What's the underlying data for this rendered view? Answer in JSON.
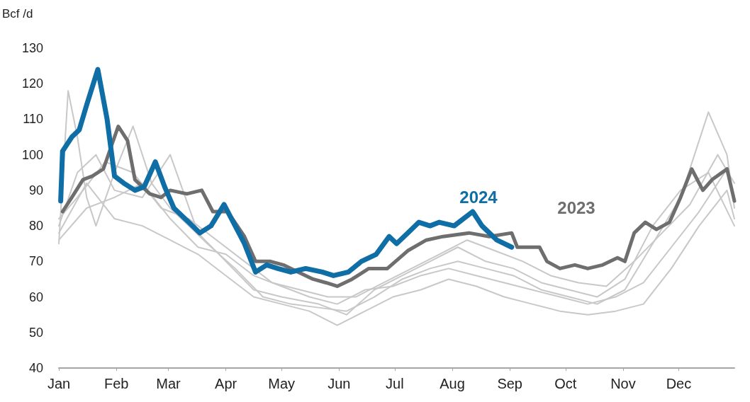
{
  "chart_data": {
    "type": "line",
    "ylabel": "Bcf /d",
    "xlim": [
      "--01-01",
      "--12-31"
    ],
    "xticks": [
      {
        "value": "--01-01",
        "label": "Jan"
      },
      {
        "value": "--02-01",
        "label": "Feb"
      },
      {
        "value": "--03-01",
        "label": "Mar"
      },
      {
        "value": "--04-01",
        "label": "Apr"
      },
      {
        "value": "--05-01",
        "label": "May"
      },
      {
        "value": "--06-01",
        "label": "Jun"
      },
      {
        "value": "--07-01",
        "label": "Jul"
      },
      {
        "value": "--08-01",
        "label": "Aug"
      },
      {
        "value": "--09-01",
        "label": "Sep"
      },
      {
        "value": "--10-01",
        "label": "Oct"
      },
      {
        "value": "--11-01",
        "label": "Nov"
      },
      {
        "value": "--12-01",
        "label": "Dec"
      }
    ],
    "ylim": [
      40,
      130
    ],
    "yticks": [
      40,
      50,
      60,
      70,
      80,
      90,
      100,
      110,
      120,
      130
    ],
    "grid": false,
    "marker": "none",
    "line_style": "solid",
    "annotations": [
      "2024",
      "2023"
    ],
    "series": [
      {
        "color": "#0f6ea6",
        "x": [
          "--01-02",
          "--01-03",
          "--01-08",
          "--01-12",
          "--01-16",
          "--01-22",
          "--01-27",
          "--01-31",
          "--02-05",
          "--02-11",
          "--02-16",
          "--02-22",
          "--02-27",
          "--03-04",
          "--03-12",
          "--03-18",
          "--03-24",
          "--03-31",
          "--04-06",
          "--04-11",
          "--04-17",
          "--04-23",
          "--04-29",
          "--05-06",
          "--05-14",
          "--05-23",
          "--05-29",
          "--06-06",
          "--06-13",
          "--06-21",
          "--06-28",
          "--07-02",
          "--07-08",
          "--07-14",
          "--07-20",
          "--07-25",
          "--08-02",
          "--08-12",
          "--08-17",
          "--08-25",
          "--09-02"
        ],
        "values": [
          87,
          101,
          105,
          107,
          114,
          124,
          110,
          94,
          92,
          90,
          91,
          98,
          91,
          85,
          81,
          78,
          80,
          86,
          80,
          75,
          67,
          69,
          68,
          67,
          68,
          67,
          66,
          67,
          70,
          72,
          77,
          75,
          78,
          81,
          80,
          81,
          80,
          84,
          80,
          76,
          74
        ]
      },
      {
        "color": "#6e6e6e",
        "x": [
          "--01-03",
          "--01-08",
          "--01-14",
          "--01-19",
          "--01-25",
          "--02-02",
          "--02-07",
          "--02-11",
          "--02-19",
          "--02-25",
          "--03-02",
          "--03-11",
          "--03-19",
          "--03-25",
          "--04-02",
          "--04-11",
          "--04-17",
          "--04-25",
          "--05-02",
          "--05-10",
          "--05-18",
          "--05-25",
          "--05-31",
          "--06-08",
          "--06-17",
          "--06-27",
          "--07-08",
          "--07-18",
          "--07-27",
          "--08-10",
          "--08-21",
          "--09-02",
          "--09-05",
          "--09-11",
          "--09-17",
          "--09-21",
          "--09-28",
          "--10-06",
          "--10-13",
          "--10-21",
          "--10-29",
          "--11-02",
          "--11-07",
          "--11-13",
          "--11-19",
          "--11-26",
          "--12-02",
          "--12-08",
          "--12-14",
          "--12-19",
          "--12-27",
          "--12-31"
        ],
        "values": [
          84,
          88,
          93,
          94,
          96,
          108,
          104,
          93,
          89,
          88,
          90,
          89,
          90,
          84,
          84,
          77,
          70,
          70,
          69,
          67,
          65,
          64,
          63,
          65,
          68,
          68,
          73,
          76,
          77,
          78,
          77,
          78,
          74,
          74,
          74,
          70,
          68,
          69,
          68,
          69,
          71,
          70,
          78,
          81,
          79,
          81,
          88,
          96,
          90,
          93,
          96,
          87
        ]
      },
      {
        "color": "#c8c8c8",
        "x": [
          "--01-01",
          "--01-06",
          "--01-11",
          "--01-16",
          "--01-21",
          "--01-31",
          "--02-10",
          "--02-20",
          "--03-02",
          "--03-12",
          "--03-22",
          "--04-06",
          "--04-21",
          "--05-06",
          "--05-21",
          "--06-05",
          "--06-20",
          "--07-05",
          "--07-20",
          "--08-04",
          "--08-19",
          "--09-03",
          "--09-18",
          "--10-03",
          "--10-18",
          "--11-02",
          "--11-17",
          "--12-02",
          "--12-17",
          "--12-27",
          "--12-31"
        ],
        "values": [
          75,
          118,
          105,
          88,
          80,
          95,
          108,
          92,
          85,
          80,
          75,
          68,
          60,
          58,
          57,
          56,
          60,
          65,
          68,
          70,
          68,
          66,
          62,
          60,
          58,
          62,
          75,
          88,
          112,
          100,
          85
        ]
      },
      {
        "color": "#c8c8c8",
        "x": [
          "--01-01",
          "--01-11",
          "--01-21",
          "--01-31",
          "--02-15",
          "--03-02",
          "--03-17",
          "--04-01",
          "--04-16",
          "--05-01",
          "--05-21",
          "--06-05",
          "--06-20",
          "--07-05",
          "--07-20",
          "--08-04",
          "--08-19",
          "--09-03",
          "--09-18",
          "--10-03",
          "--10-18",
          "--11-02",
          "--11-17",
          "--12-02",
          "--12-17",
          "--12-31"
        ],
        "values": [
          80,
          95,
          100,
          90,
          88,
          100,
          78,
          70,
          62,
          60,
          58,
          55,
          62,
          66,
          70,
          74,
          70,
          68,
          64,
          62,
          60,
          65,
          80,
          90,
          95,
          80
        ]
      },
      {
        "color": "#c8c8c8",
        "x": [
          "--01-01",
          "--01-16",
          "--01-31",
          "--02-15",
          "--03-02",
          "--03-17",
          "--04-01",
          "--04-16",
          "--05-01",
          "--05-16",
          "--05-31",
          "--06-15",
          "--06-30",
          "--07-15",
          "--07-30",
          "--08-14",
          "--08-29",
          "--09-13",
          "--09-28",
          "--10-13",
          "--10-28",
          "--11-12",
          "--11-27",
          "--12-12",
          "--12-27",
          "--12-31"
        ],
        "values": [
          78,
          92,
          82,
          80,
          76,
          72,
          66,
          60,
          58,
          56,
          52,
          56,
          60,
          62,
          65,
          63,
          60,
          58,
          56,
          55,
          56,
          58,
          68,
          80,
          90,
          82
        ]
      },
      {
        "color": "#c8c8c8",
        "x": [
          "--01-01",
          "--01-11",
          "--01-26",
          "--02-10",
          "--02-25",
          "--03-12",
          "--03-27",
          "--04-11",
          "--04-26",
          "--05-11",
          "--05-26",
          "--06-10",
          "--06-25",
          "--07-10",
          "--07-25",
          "--08-09",
          "--08-24",
          "--09-08",
          "--09-23",
          "--10-08",
          "--10-23",
          "--11-07",
          "--11-22",
          "--12-07",
          "--12-22",
          "--12-31"
        ],
        "values": [
          82,
          88,
          98,
          95,
          85,
          82,
          76,
          70,
          64,
          62,
          60,
          60,
          64,
          68,
          72,
          76,
          73,
          70,
          66,
          64,
          63,
          70,
          78,
          86,
          100,
          92
        ]
      },
      {
        "color": "#c8c8c8",
        "x": [
          "--01-01",
          "--01-16",
          "--01-31",
          "--02-15",
          "--03-02",
          "--03-17",
          "--04-01",
          "--04-16",
          "--05-01",
          "--05-16",
          "--05-31",
          "--06-15",
          "--06-30",
          "--07-15",
          "--07-30",
          "--08-14",
          "--08-29",
          "--09-13",
          "--09-28",
          "--10-13",
          "--10-28",
          "--11-12",
          "--11-27",
          "--12-12",
          "--12-27",
          "--12-31"
        ],
        "values": [
          76,
          85,
          88,
          92,
          82,
          74,
          72,
          66,
          63,
          60,
          58,
          62,
          63,
          66,
          68,
          66,
          64,
          62,
          60,
          58,
          60,
          64,
          74,
          84,
          96,
          88
        ]
      }
    ]
  }
}
